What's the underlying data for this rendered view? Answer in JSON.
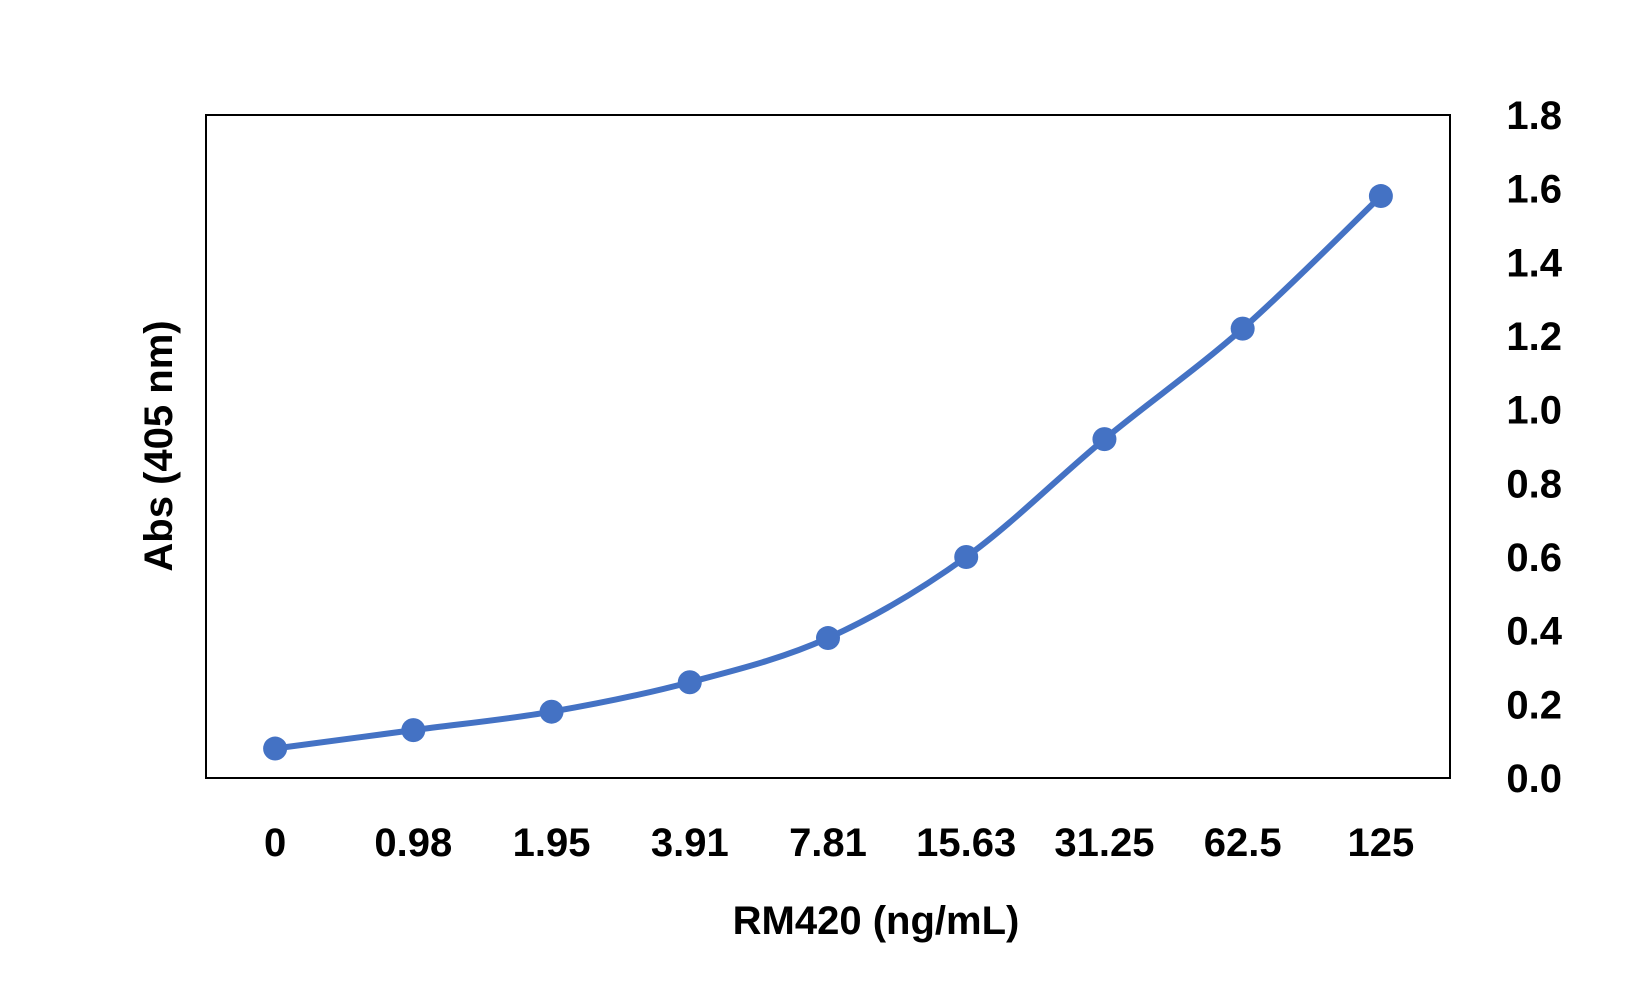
{
  "chart_data": {
    "type": "line",
    "title": "",
    "xlabel": "RM420 (ng/mL)",
    "ylabel": "Abs (405 nm)",
    "categories": [
      "0",
      "0.98",
      "1.95",
      "3.91",
      "7.81",
      "15.63",
      "31.25",
      "62.5",
      "125"
    ],
    "series": [
      {
        "values": [
          0.08,
          0.13,
          0.18,
          0.26,
          0.38,
          0.6,
          0.92,
          1.22,
          1.58
        ]
      }
    ],
    "y_ticks": [
      "0.0",
      "0.2",
      "0.4",
      "0.6",
      "0.8",
      "1.0",
      "1.2",
      "1.4",
      "1.6",
      "1.8"
    ],
    "ylim": [
      0,
      1.8
    ],
    "y_axis_side": "right",
    "grid": false,
    "legend": "none",
    "colors": {
      "series": "#4472C4",
      "frame": "#000000",
      "text": "#000000"
    }
  }
}
